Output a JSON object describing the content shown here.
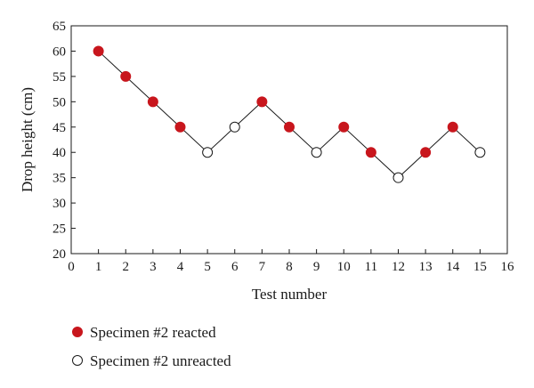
{
  "chart_data": {
    "type": "scatter",
    "title": "",
    "xlabel": "Test number",
    "ylabel": "Drop height (cm)",
    "xlim": [
      0,
      16
    ],
    "ylim": [
      20,
      65
    ],
    "xticks": [
      0,
      1,
      2,
      3,
      4,
      5,
      6,
      7,
      8,
      9,
      10,
      11,
      12,
      13,
      14,
      15,
      16
    ],
    "yticks": [
      20,
      25,
      30,
      35,
      40,
      45,
      50,
      55,
      60,
      65
    ],
    "grid": false,
    "legend_position": "bottom-left",
    "connected_line": true,
    "points": [
      {
        "x": 1,
        "y": 60,
        "status": "reacted"
      },
      {
        "x": 2,
        "y": 55,
        "status": "reacted"
      },
      {
        "x": 3,
        "y": 50,
        "status": "reacted"
      },
      {
        "x": 4,
        "y": 45,
        "status": "reacted"
      },
      {
        "x": 5,
        "y": 40,
        "status": "unreacted"
      },
      {
        "x": 6,
        "y": 45,
        "status": "unreacted"
      },
      {
        "x": 7,
        "y": 50,
        "status": "reacted"
      },
      {
        "x": 8,
        "y": 45,
        "status": "reacted"
      },
      {
        "x": 9,
        "y": 40,
        "status": "unreacted"
      },
      {
        "x": 10,
        "y": 45,
        "status": "reacted"
      },
      {
        "x": 11,
        "y": 40,
        "status": "reacted"
      },
      {
        "x": 12,
        "y": 35,
        "status": "unreacted"
      },
      {
        "x": 13,
        "y": 40,
        "status": "reacted"
      },
      {
        "x": 14,
        "y": 45,
        "status": "reacted"
      },
      {
        "x": 15,
        "y": 40,
        "status": "unreacted"
      }
    ],
    "series": [
      {
        "name": "Specimen #2 reacted",
        "key": "reacted",
        "marker": "filled-circle",
        "color": "#c8161d"
      },
      {
        "name": "Specimen #2 unreacted",
        "key": "unreacted",
        "marker": "open-circle",
        "color": "#ffffff"
      }
    ],
    "line_color": "#1a1a1a"
  }
}
